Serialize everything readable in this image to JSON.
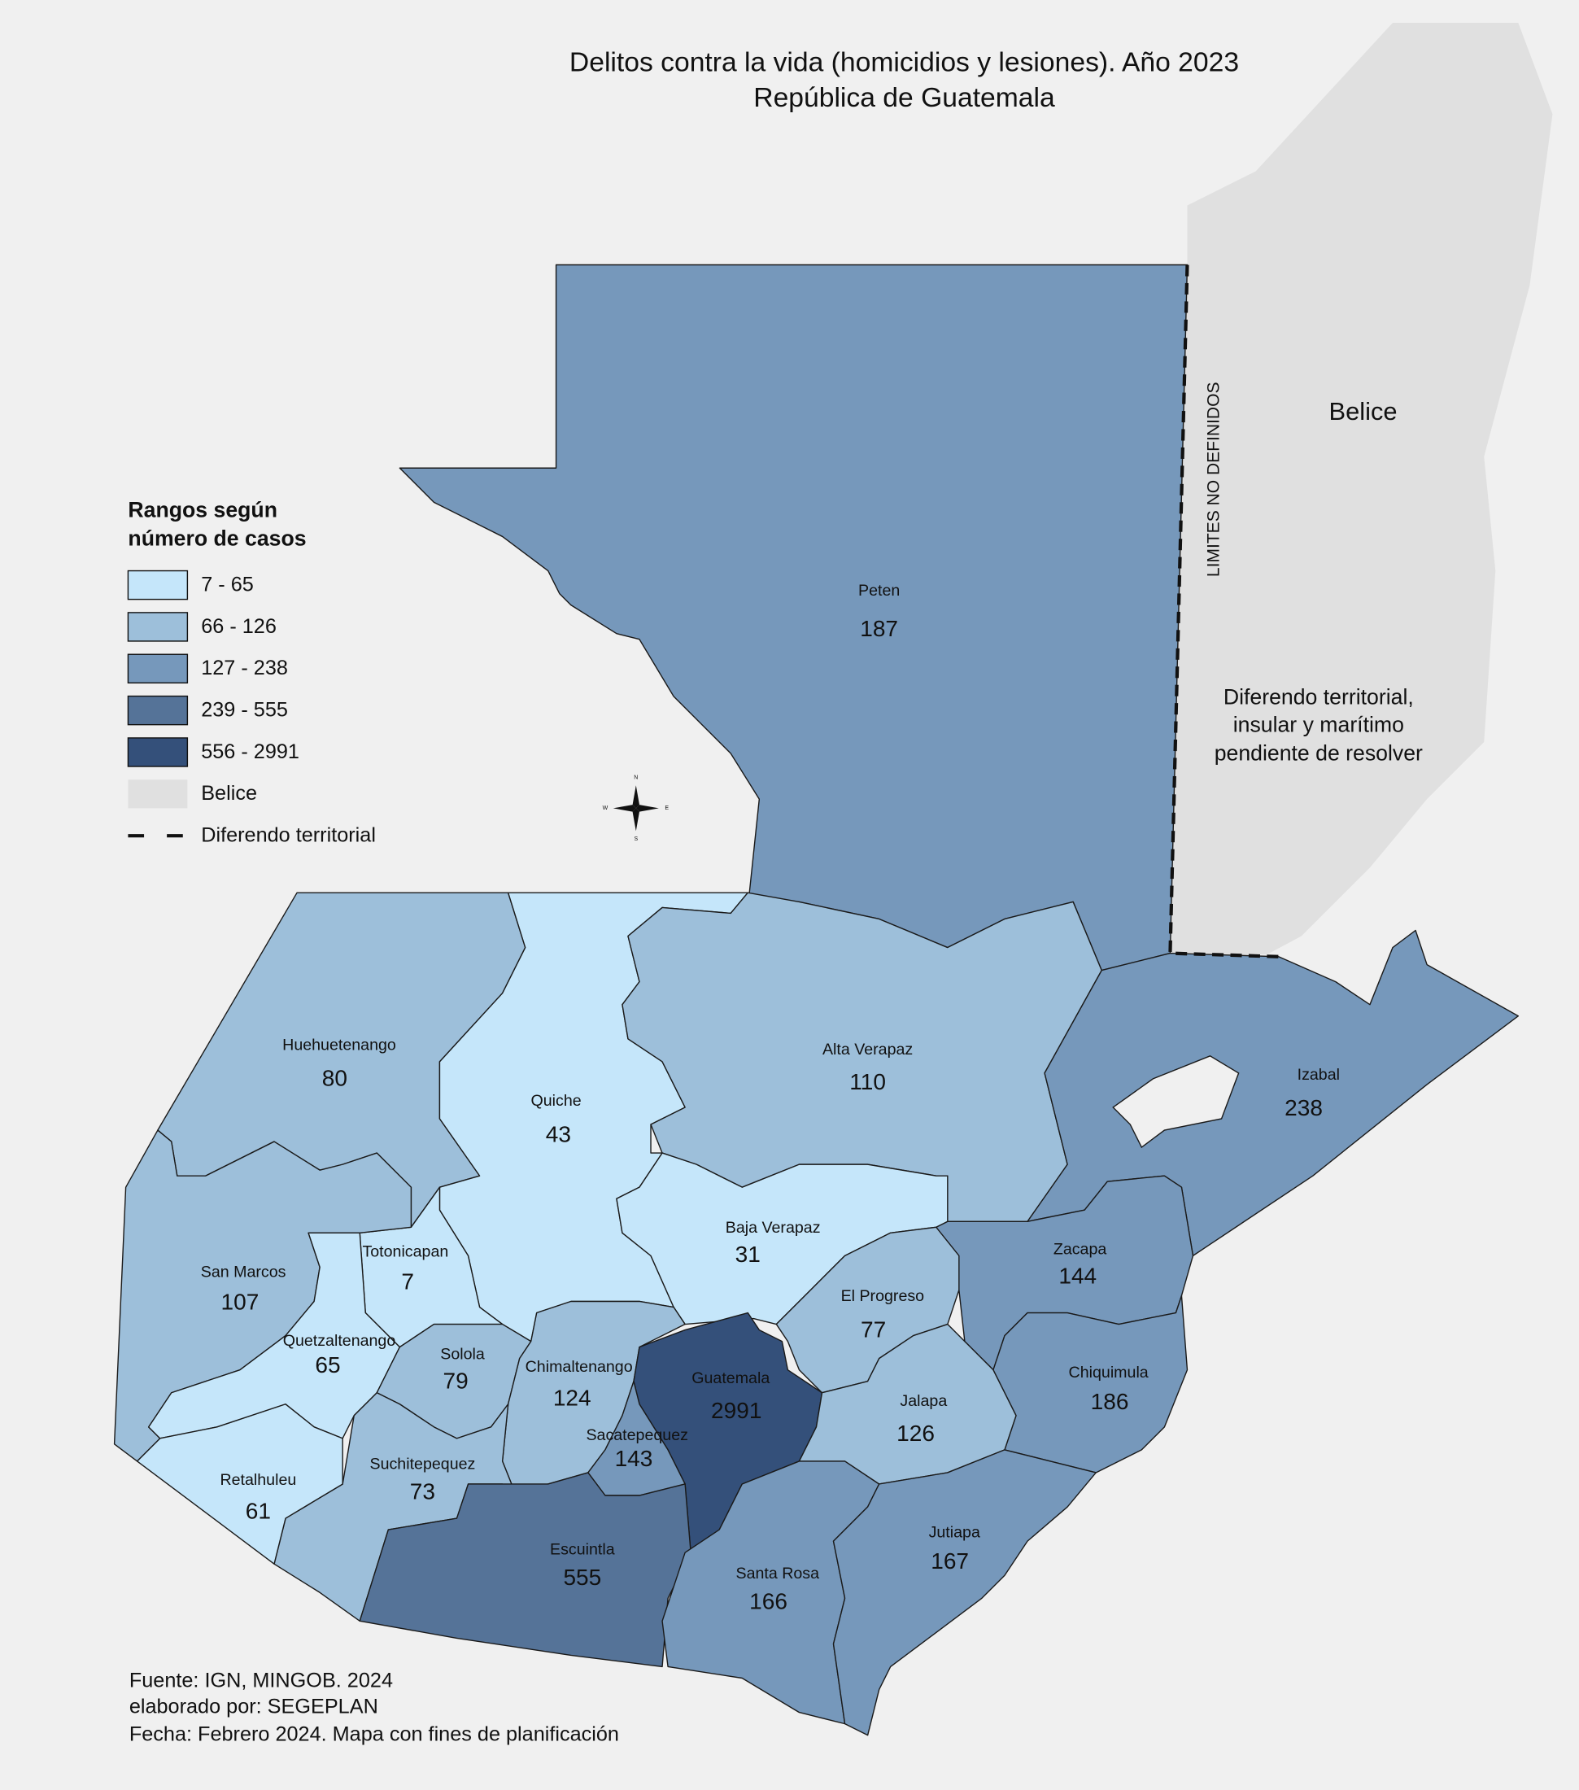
{
  "title": "Delitos contra la vida (homicidios y lesiones). Año 2023",
  "subtitle": "República de Guatemala",
  "legend": {
    "title": [
      "Rangos según",
      "número de casos"
    ],
    "items": [
      {
        "label": "7 - 65",
        "color": "#c5e6fa"
      },
      {
        "label": "66 - 126",
        "color": "#9dbfda"
      },
      {
        "label": "127 - 238",
        "color": "#7698bb"
      },
      {
        "label": "239 - 555",
        "color": "#557398"
      },
      {
        "label": "556 - 2991",
        "color": "#34507a"
      },
      {
        "label": "Belice",
        "color": "#e0e0e0"
      },
      {
        "label": "Diferendo territorial",
        "line": "dashed"
      }
    ]
  },
  "departments": [
    {
      "name": "Peten",
      "value": 187,
      "color": "#7698bb"
    },
    {
      "name": "Huehuetenango",
      "value": 80,
      "color": "#9dbfda"
    },
    {
      "name": "Quiche",
      "value": 43,
      "color": "#c5e6fa"
    },
    {
      "name": "Alta Verapaz",
      "value": 110,
      "color": "#9dbfda"
    },
    {
      "name": "Izabal",
      "value": 238,
      "color": "#7698bb"
    },
    {
      "name": "Zacapa",
      "value": 144,
      "color": "#7698bb"
    },
    {
      "name": "Baja Verapaz",
      "value": 31,
      "color": "#c5e6fa"
    },
    {
      "name": "El Progreso",
      "value": 77,
      "color": "#9dbfda"
    },
    {
      "name": "Totonicapan",
      "value": 7,
      "color": "#c5e6fa"
    },
    {
      "name": "San Marcos",
      "value": 107,
      "color": "#9dbfda"
    },
    {
      "name": "Quetzaltenango",
      "value": 65,
      "color": "#c5e6fa"
    },
    {
      "name": "Solola",
      "value": 79,
      "color": "#9dbfda"
    },
    {
      "name": "Chimaltenango",
      "value": 124,
      "color": "#9dbfda"
    },
    {
      "name": "Guatemala",
      "value": 2991,
      "color": "#34507a"
    },
    {
      "name": "Chiquimula",
      "value": 186,
      "color": "#7698bb"
    },
    {
      "name": "Jalapa",
      "value": 126,
      "color": "#9dbfda"
    },
    {
      "name": "Sacatepequez",
      "value": 143,
      "color": "#7698bb"
    },
    {
      "name": "Suchitepequez",
      "value": 73,
      "color": "#9dbfda"
    },
    {
      "name": "Retalhuleu",
      "value": 61,
      "color": "#c5e6fa"
    },
    {
      "name": "Escuintla",
      "value": 555,
      "color": "#557398"
    },
    {
      "name": "Santa Rosa",
      "value": 166,
      "color": "#7698bb"
    },
    {
      "name": "Jutiapa",
      "value": 167,
      "color": "#7698bb"
    }
  ],
  "belice_label": "Belice",
  "boundary_note": "LIMITES NO DEFINIDOS",
  "dispute_note": [
    "Diferendo territorial,",
    "insular y marítimo",
    "pendiente de resolver"
  ],
  "compass": [
    "N",
    "E",
    "S",
    "W"
  ],
  "source": [
    "Fuente: IGN, MINGOB. 2024",
    "elaborado por: SEGEPLAN",
    "Fecha: Febrero 2024. Mapa con fines de planificación"
  ]
}
